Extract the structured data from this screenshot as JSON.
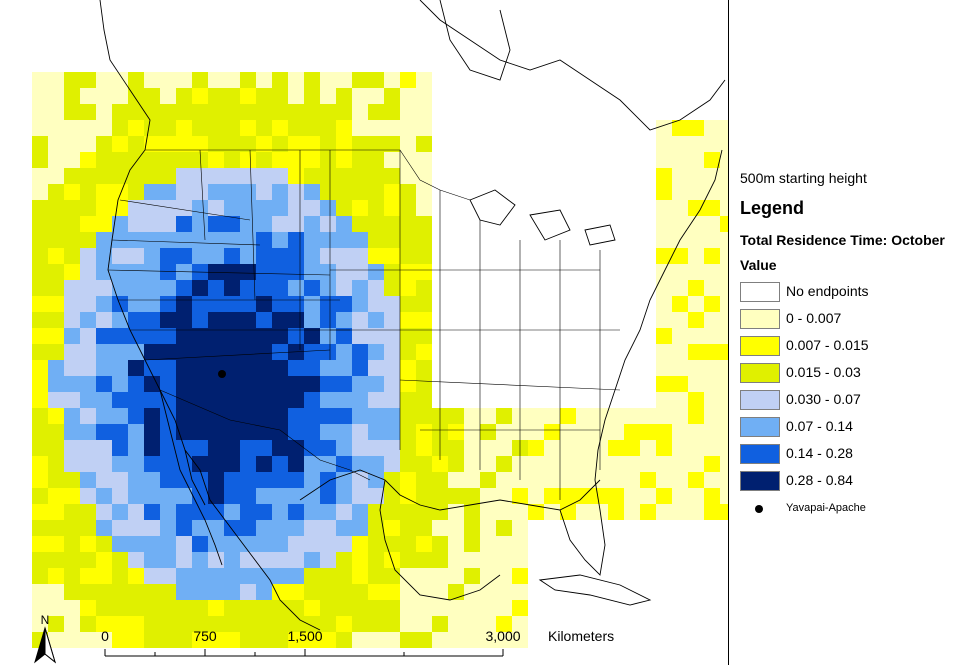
{
  "map": {
    "subtitle": "500m starting height",
    "legend_title": "Legend",
    "layer_title": "Total Residence Time: October",
    "field_title": "Value",
    "classes": [
      {
        "label": "No endpoints",
        "color": "#ffffff"
      },
      {
        "label": "0 - 0.007",
        "color": "#ffffc0"
      },
      {
        "label": "0.007 - 0.015",
        "color": "#ffff00"
      },
      {
        "label": "0.015 - 0.03",
        "color": "#e0f000"
      },
      {
        "label": "0.030 - 0.07",
        "color": "#c0d0f4"
      },
      {
        "label": "0.07 - 0.14",
        "color": "#70aff4"
      },
      {
        "label": "0.14 - 0.28",
        "color": "#1060e0"
      },
      {
        "label": "0.28 - 0.84",
        "color": "#002070"
      }
    ],
    "point_marker": {
      "label": "Yavapai-Apache",
      "icon": "black-dot-icon"
    },
    "scale_bar": {
      "ticks": [
        "0",
        "750",
        "1,500",
        "3,000"
      ],
      "unit": "Kilometers"
    },
    "north_arrow": {
      "label": "N",
      "icon": "north-arrow-icon"
    },
    "boundary_color": "#000000"
  }
}
